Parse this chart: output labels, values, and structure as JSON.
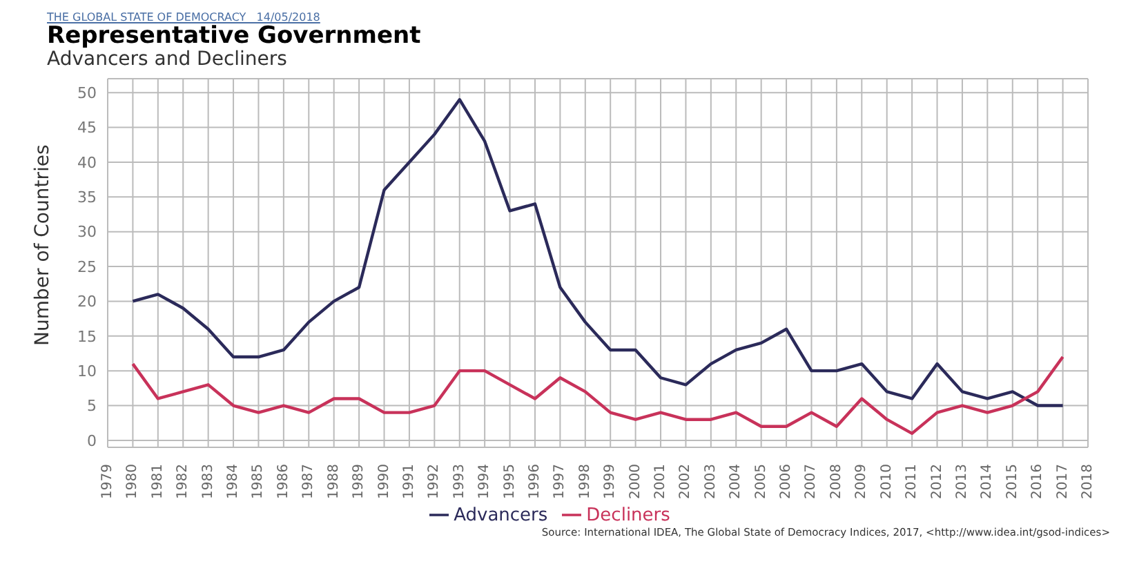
{
  "chart_data": {
    "type": "line",
    "title": "Representative Government",
    "subtitle": "Advancers and Decliners",
    "ylabel": "Number of Countries",
    "annotations": [
      "THE GLOBAL STATE OF DEMOCRACY   14/05/2018",
      "Source: International IDEA, The Global State of Democracy Indices, 2017, <http://www.idea.int/gsod-indices>"
    ],
    "categories": [
      "1979",
      "1980",
      "1981",
      "1982",
      "1983",
      "1984",
      "1985",
      "1986",
      "1987",
      "1988",
      "1989",
      "1990",
      "1991",
      "1992",
      "1993",
      "1994",
      "1995",
      "1996",
      "1997",
      "1998",
      "1999",
      "2000",
      "2001",
      "2002",
      "2003",
      "2004",
      "2005",
      "2006",
      "2007",
      "2008",
      "2009",
      "2010",
      "2011",
      "2012",
      "2013",
      "2014",
      "2015",
      "2016",
      "2017",
      "2018"
    ],
    "series": [
      {
        "name": "Advancers",
        "color": "#2b2a5a",
        "values": [
          null,
          20,
          21,
          19,
          16,
          12,
          12,
          13,
          17,
          20,
          22,
          36,
          40,
          44,
          49,
          43,
          33,
          34,
          22,
          17,
          13,
          13,
          9,
          8,
          11,
          13,
          14,
          16,
          10,
          10,
          11,
          7,
          6,
          11,
          7,
          6,
          7,
          5,
          5,
          null
        ]
      },
      {
        "name": "Decliners",
        "color": "#c8325a",
        "values": [
          null,
          11,
          6,
          7,
          8,
          5,
          4,
          5,
          4,
          6,
          6,
          4,
          4,
          5,
          10,
          10,
          8,
          6,
          9,
          7,
          4,
          3,
          4,
          3,
          3,
          4,
          2,
          2,
          4,
          2,
          6,
          3,
          1,
          4,
          5,
          4,
          5,
          7,
          12,
          null
        ]
      }
    ],
    "ylim": [
      -1,
      52
    ],
    "yticks": [
      0,
      5,
      10,
      15,
      20,
      25,
      30,
      35,
      40,
      45,
      50
    ],
    "grid": true,
    "legend": "bottom",
    "marker": "none",
    "line_style": "solid"
  }
}
